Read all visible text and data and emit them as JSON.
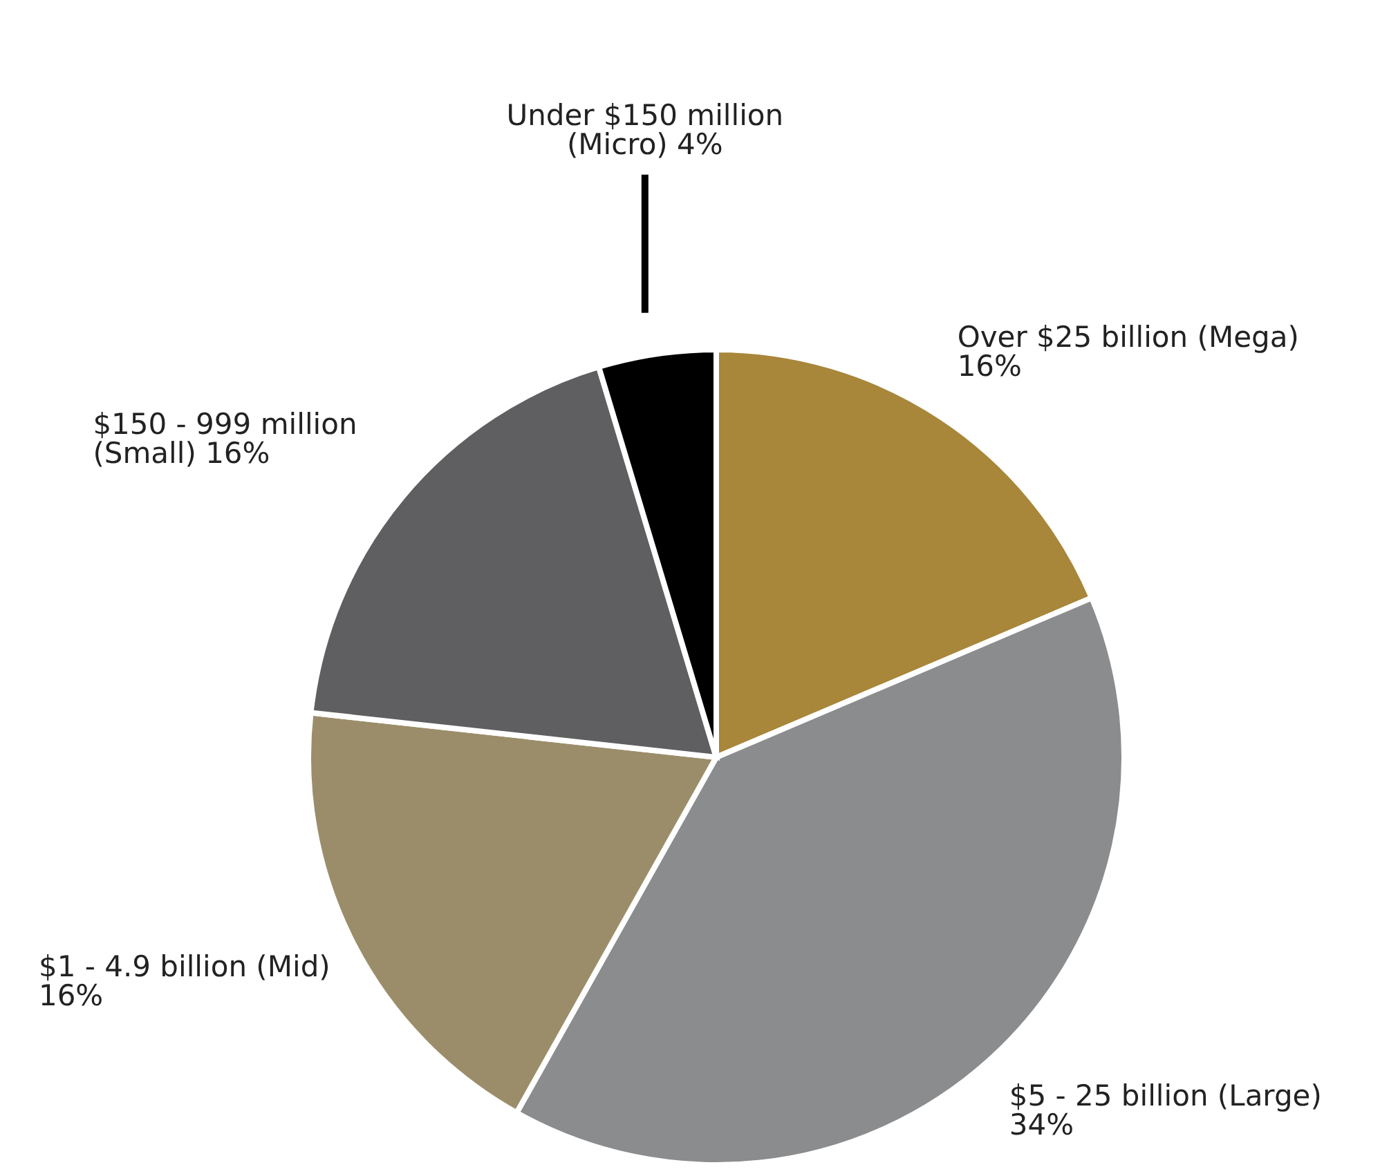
{
  "chart_data": {
    "type": "pie",
    "categories": [
      "Over $25 billion (Mega)",
      "$5 - 25 billion (Large)",
      "$1 - 4.9 billion (Mid)",
      "$150 - 999 million (Small)",
      "Under $150 million (Micro)"
    ],
    "values": [
      16,
      34,
      16,
      16,
      4
    ],
    "value_labels": [
      "16%",
      "34%",
      "16%",
      "16%",
      "4%"
    ],
    "colors": [
      "#a8863a",
      "#8b8c8e",
      "#9c8d6a",
      "#5f5f62",
      "#000000"
    ]
  }
}
